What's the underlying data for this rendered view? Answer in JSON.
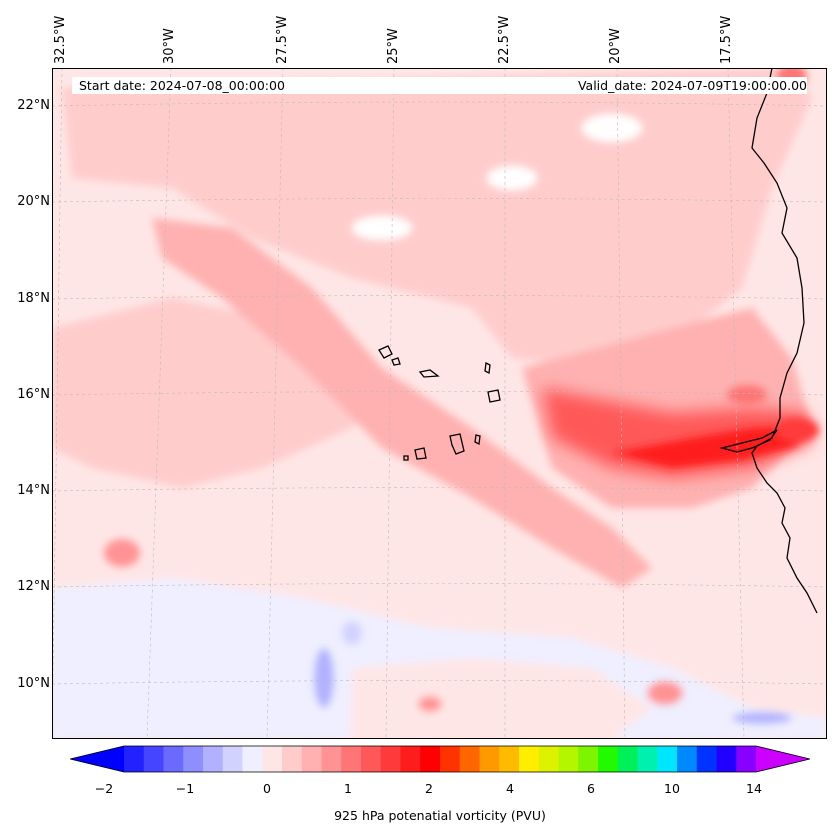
{
  "map": {
    "lon_labels": [
      "32.5°W",
      "30°W",
      "27.5°W",
      "25°W",
      "22.5°W",
      "20°W",
      "17.5°W"
    ],
    "lat_labels": [
      "22°N",
      "20°N",
      "18°N",
      "16°N",
      "14°N",
      "12°N",
      "10°N"
    ],
    "start_date": "Start date: 2024-07-08_00:00:00",
    "valid_date": "Valid_date: 2024-07-09T19:00:00.00",
    "colorbar": {
      "title": "925 hPa potenatial vorticity (PVU)",
      "ticks": [
        "−2",
        "−1",
        "0",
        "1",
        "2",
        "4",
        "6",
        "10",
        "14"
      ],
      "extend": "both",
      "colors": [
        "#0000ff",
        "#2222ff",
        "#4545ff",
        "#6a6aff",
        "#8e8eff",
        "#b1b1ff",
        "#d2d2ff",
        "#efefff",
        "#ffe6e6",
        "#ffcccc",
        "#ffb1b1",
        "#ff9393",
        "#ff7575",
        "#ff5858",
        "#ff3a3a",
        "#ff1c1c",
        "#ff0000",
        "#ff3300",
        "#ff6600",
        "#ff9900",
        "#ffbb00",
        "#ffee00",
        "#ddf200",
        "#b4f500",
        "#7df400",
        "#22fa00",
        "#00f05a",
        "#00f0b0",
        "#00e6ff",
        "#0088ff",
        "#0033ff",
        "#2200ff",
        "#8800ff",
        "#cc00ff"
      ]
    }
  }
}
